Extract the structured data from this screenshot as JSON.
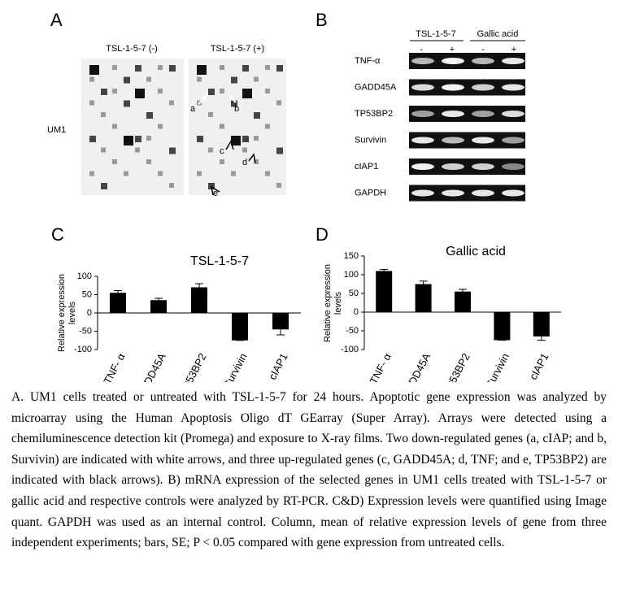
{
  "panel_a": {
    "label": "A",
    "left_title": "TSL-1-5-7 (-)",
    "right_title": "TSL-1-5-7 (+)",
    "row_label": "UM1",
    "arrows": [
      "a",
      "b",
      "c",
      "d",
      "e"
    ]
  },
  "panel_b": {
    "label": "B",
    "groups": [
      "TSL-1-5-7",
      "Gallic acid"
    ],
    "lanes": [
      "-",
      "+",
      "-",
      "+"
    ],
    "genes": [
      "TNF-α",
      "GADD45A",
      "TP53BP2",
      "Survivin",
      "cIAP1",
      "GAPDH"
    ]
  },
  "chart_data": [
    {
      "type": "bar",
      "panel": "C",
      "title": "TSL-1-5-7",
      "ylabel": "Relative expression levels",
      "categories": [
        "TNF- α",
        "GADD45A",
        "TP53BP2",
        "Survivin",
        "cIAP1"
      ],
      "values": [
        55,
        35,
        70,
        -75,
        -45
      ],
      "errors": [
        6,
        5,
        10,
        0,
        15
      ],
      "color": "#000000",
      "ylim": [
        -100,
        100
      ],
      "yticks": [
        -100,
        -50,
        0,
        50,
        100
      ]
    },
    {
      "type": "bar",
      "panel": "D",
      "title": "Gallic acid",
      "ylabel": "Relative expression levels",
      "categories": [
        "TNF- α",
        "GADD45A",
        "TP53BP2",
        "Survivin",
        "cIAP1"
      ],
      "values": [
        110,
        75,
        55,
        -75,
        -65
      ],
      "errors": [
        4,
        8,
        6,
        0,
        10
      ],
      "color": "#000000",
      "ylim": [
        -100,
        150
      ],
      "yticks": [
        -100,
        -50,
        0,
        50,
        100,
        150
      ]
    }
  ],
  "caption": "A. UM1 cells treated or untreated with TSL-1-5-7 for 24 hours. Apoptotic gene expression was analyzed by microarray using the Human Apoptosis Oligo dT GEarray (Super Array). Arrays were detected using a chemiluminescence detection kit (Promega) and exposure to X-ray films. Two down-regulated genes (a, cIAP; and b, Survivin) are indicated with white arrows, and three up-regulated genes (c, GADD45A; d, TNF; and e, TP53BP2) are indicated with black arrows). B) mRNA expression of the selected genes in UM1 cells treated with TSL-1-5-7 or gallic acid and respective controls were analyzed by RT-PCR. C&D) Expression levels were quantified using Image quant. GAPDH was used as an internal control. Column, mean of relative expression levels of gene from three independent experiments; bars, SE; P < 0.05 compared with gene expression from untreated cells."
}
